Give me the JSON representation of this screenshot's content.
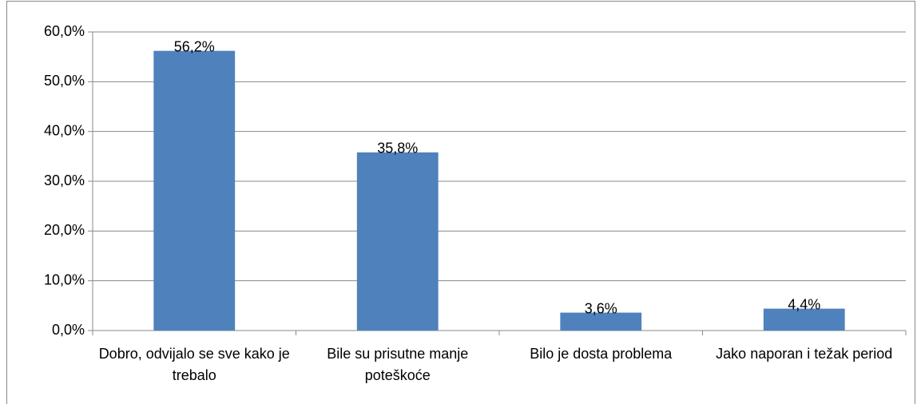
{
  "chart_data": {
    "type": "bar",
    "categories": [
      "Dobro, odvijalo se sve kako je trebalo",
      "Bile su prisutne manje poteškoće",
      "Bilo je dosta problema",
      "Jako naporan i težak period"
    ],
    "values": [
      56.2,
      35.8,
      3.6,
      4.4
    ],
    "value_labels": [
      "56,2%",
      "35,8%",
      "3,6%",
      "4,4%"
    ],
    "color": "#4f81bd",
    "ylim": [
      0,
      60
    ],
    "yticks": [
      {
        "value": 0,
        "label": "0,0%"
      },
      {
        "value": 10,
        "label": "10,0%"
      },
      {
        "value": 20,
        "label": "20,0%"
      },
      {
        "value": 30,
        "label": "30,0%"
      },
      {
        "value": 40,
        "label": "40,0%"
      },
      {
        "value": 50,
        "label": "50,0%"
      },
      {
        "value": 60,
        "label": "60,0%"
      }
    ],
    "grid": true
  }
}
